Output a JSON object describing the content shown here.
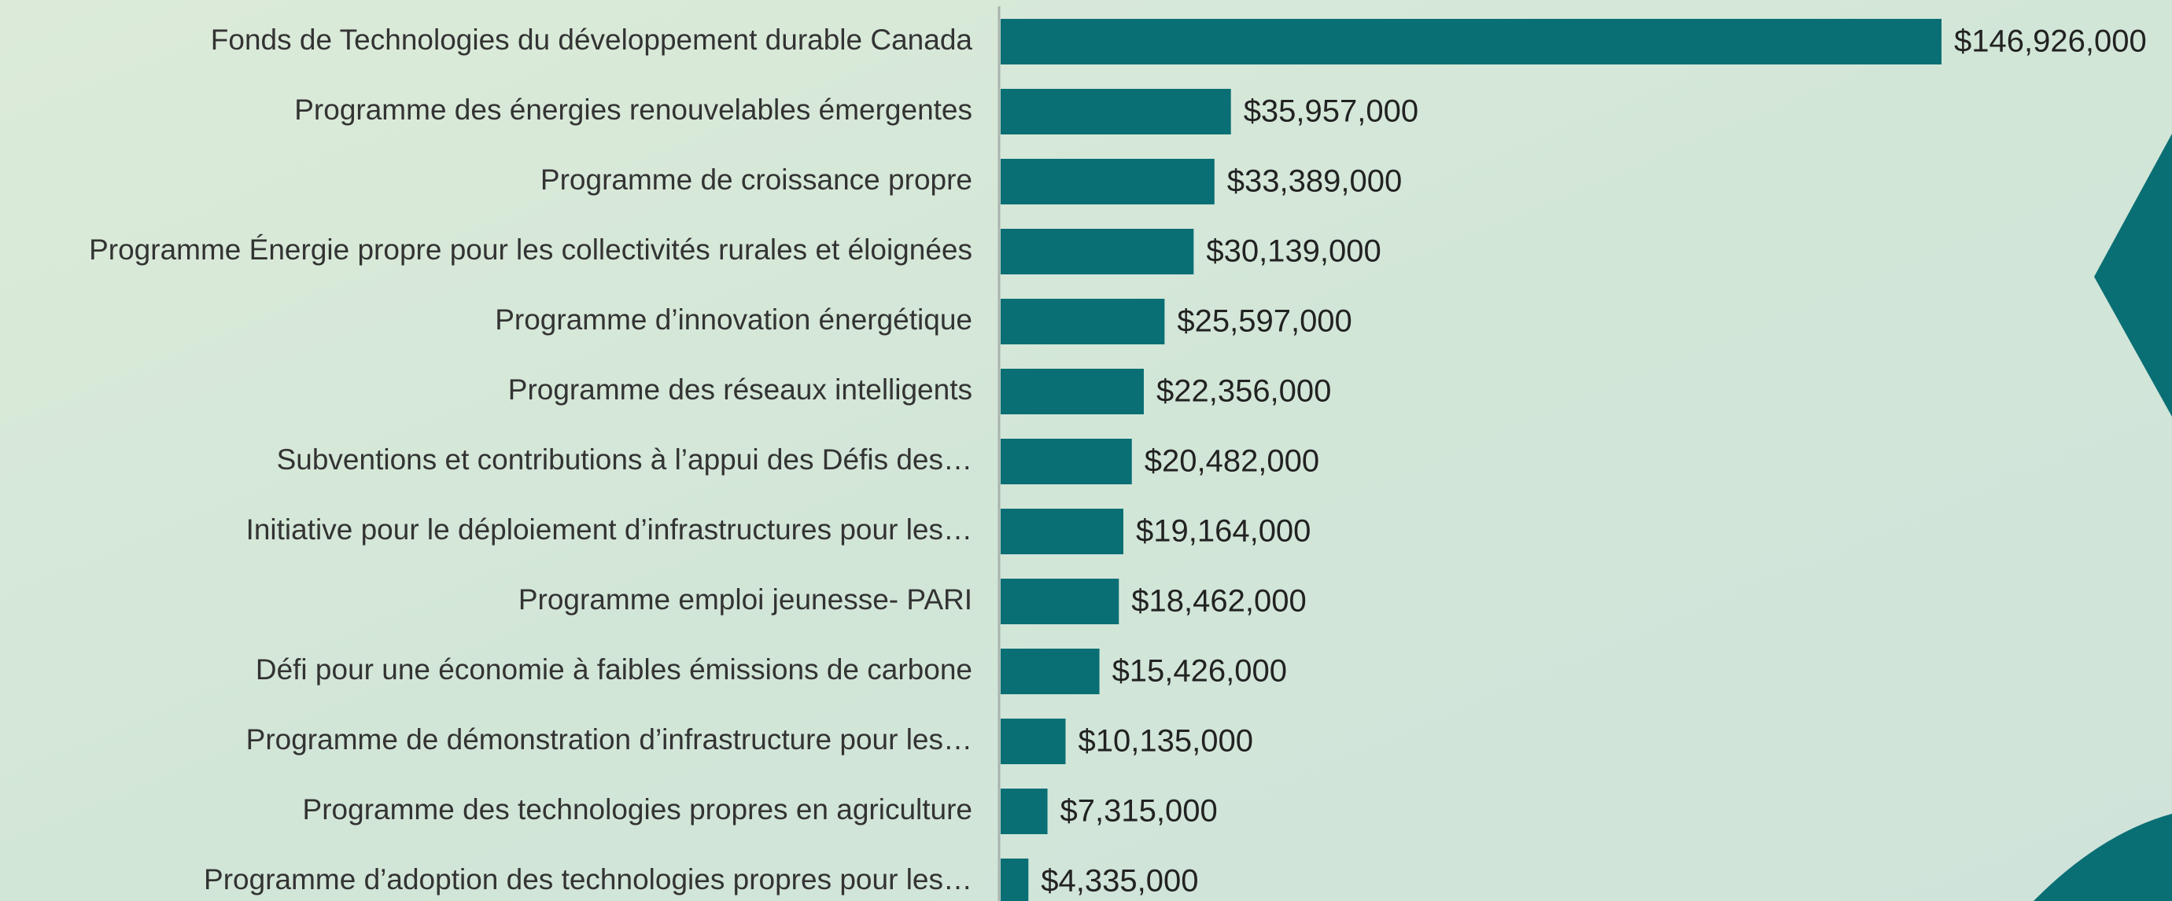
{
  "chart_data": {
    "type": "bar",
    "orientation": "horizontal",
    "categories": [
      "Fonds de Technologies du développement durable Canada",
      "Programme des énergies renouvelables émergentes",
      "Programme de croissance propre",
      "Programme Énergie propre pour les collectivités rurales et éloignées",
      "Programme d’innovation énergétique",
      "Programme des réseaux intelligents",
      "Subventions et contributions à l’appui des Défis des…",
      "Initiative pour le déploiement d’infrastructures pour les…",
      "Programme emploi jeunesse- PARI",
      "Défi pour une économie à faibles émissions de carbone",
      "Programme de démonstration d’infrastructure pour les…",
      "Programme des technologies propres en agriculture",
      "Programme d’adoption des technologies propres pour les…"
    ],
    "values": [
      146926000,
      35957000,
      33389000,
      30139000,
      25597000,
      22356000,
      20482000,
      19164000,
      18462000,
      15426000,
      10135000,
      7315000,
      4335000
    ],
    "value_labels": [
      "$146,926,000",
      "$35,957,000",
      "$33,389,000",
      "$30,139,000",
      "$25,597,000",
      "$22,356,000",
      "$20,482,000",
      "$19,164,000",
      "$18,462,000",
      "$15,426,000",
      "$10,135,000",
      "$7,315,000",
      "$4,335,000"
    ],
    "color": "#0a6f74"
  }
}
